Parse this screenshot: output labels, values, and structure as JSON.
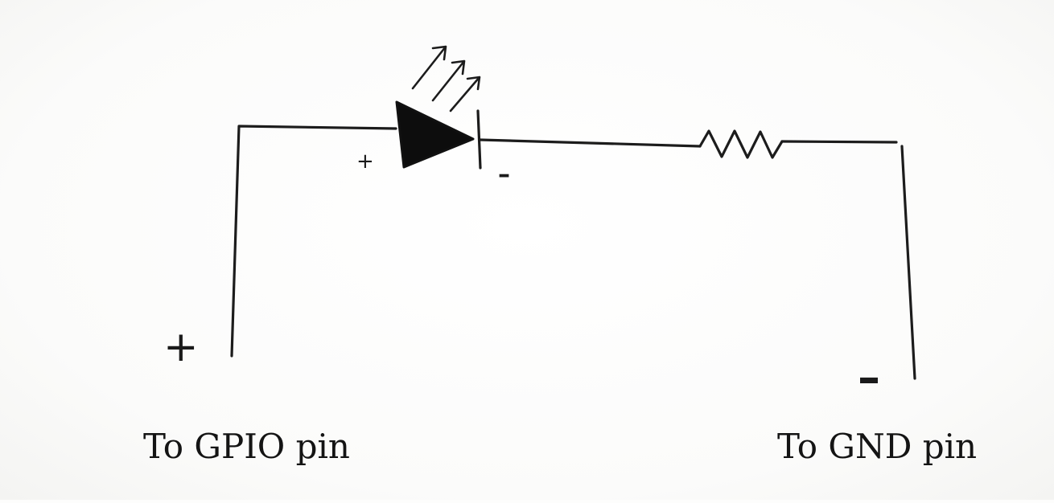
{
  "labels": {
    "gpio": "To GPIO pin",
    "gnd": "To GND pin"
  },
  "polarity": {
    "gpio_terminal": "+",
    "gnd_terminal": "–",
    "led_anode": "+",
    "led_cathode": "–"
  },
  "colors": {
    "ink": "#1c1c1c",
    "paper": "#fdfdfc"
  }
}
